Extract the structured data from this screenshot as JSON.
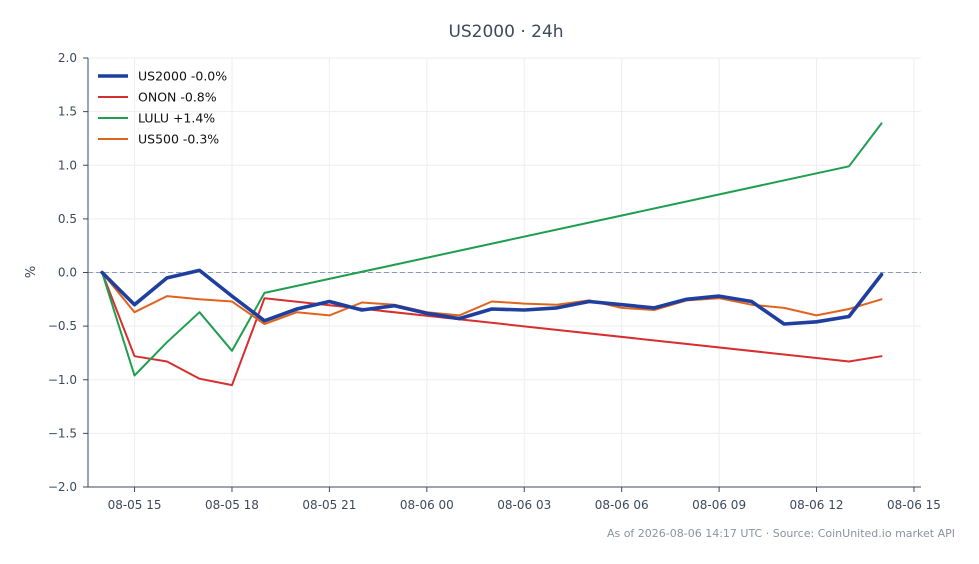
{
  "chart_data": {
    "type": "line",
    "title": "US2000 · 24h",
    "xlabel": "",
    "ylabel": "%",
    "ylim": [
      -2.0,
      2.0
    ],
    "xlim": [
      "2026-08-05 13:34",
      "2026-08-06 15:13"
    ],
    "x_ticks": [
      "2026-08-05 15:00",
      "2026-08-05 18:00",
      "2026-08-05 21:00",
      "2026-08-06 00:00",
      "2026-08-06 03:00",
      "2026-08-06 06:00",
      "2026-08-06 09:00",
      "2026-08-06 12:00",
      "2026-08-06 15:00"
    ],
    "x_tick_labels": [
      "08-05 15",
      "08-05 18",
      "08-05 21",
      "08-06 00",
      "08-06 03",
      "08-06 06",
      "08-06 09",
      "08-06 12",
      "08-06 15"
    ],
    "y_ticks": [
      2.0,
      1.5,
      1.0,
      0.5,
      0.0,
      -0.5,
      -1.0,
      -1.5,
      -2.0
    ],
    "y_tick_labels": [
      "2.0",
      "1.5",
      "1.0",
      "0.5",
      "0.0",
      "−0.5",
      "−1.0",
      "−1.5",
      "−2.0"
    ],
    "grid": true,
    "reference_line": 0.0,
    "legend_position": "top-left",
    "series": [
      {
        "name": "US2000 -0.0%",
        "color": "#1f3f9f",
        "emphasis": true,
        "x": [
          "2026-08-05 14:00",
          "2026-08-05 15:00",
          "2026-08-05 16:00",
          "2026-08-05 17:00",
          "2026-08-05 18:00",
          "2026-08-05 19:00",
          "2026-08-05 20:00",
          "2026-08-05 21:00",
          "2026-08-05 22:00",
          "2026-08-05 23:00",
          "2026-08-06 00:00",
          "2026-08-06 01:00",
          "2026-08-06 02:00",
          "2026-08-06 03:00",
          "2026-08-06 04:00",
          "2026-08-06 05:00",
          "2026-08-06 06:00",
          "2026-08-06 07:00",
          "2026-08-06 08:00",
          "2026-08-06 09:00",
          "2026-08-06 10:00",
          "2026-08-06 11:00",
          "2026-08-06 12:00",
          "2026-08-06 13:00",
          "2026-08-06 14:00"
        ],
        "values": [
          0.0,
          -0.3,
          -0.05,
          0.02,
          -0.22,
          -0.45,
          -0.34,
          -0.27,
          -0.35,
          -0.31,
          -0.38,
          -0.43,
          -0.34,
          -0.35,
          -0.33,
          -0.27,
          -0.3,
          -0.33,
          -0.25,
          -0.22,
          -0.27,
          -0.48,
          -0.46,
          -0.41,
          -0.02
        ]
      },
      {
        "name": "ONON -0.8%",
        "color": "#d62f2f",
        "emphasis": false,
        "x": [
          "2026-08-05 14:00",
          "2026-08-05 15:00",
          "2026-08-05 16:00",
          "2026-08-05 17:00",
          "2026-08-05 18:00",
          "2026-08-05 19:00",
          "2026-08-06 13:00",
          "2026-08-06 14:00"
        ],
        "values": [
          0.0,
          -0.78,
          -0.83,
          -0.99,
          -1.05,
          -0.24,
          -0.83,
          -0.78
        ]
      },
      {
        "name": "LULU +1.4%",
        "color": "#1f9e4f",
        "emphasis": false,
        "x": [
          "2026-08-05 14:00",
          "2026-08-05 15:00",
          "2026-08-05 16:00",
          "2026-08-05 17:00",
          "2026-08-05 18:00",
          "2026-08-05 19:00",
          "2026-08-06 13:00",
          "2026-08-06 14:00"
        ],
        "values": [
          0.0,
          -0.96,
          -0.65,
          -0.37,
          -0.73,
          -0.19,
          0.99,
          1.39
        ]
      },
      {
        "name": "US500 -0.3%",
        "color": "#e0631d",
        "emphasis": false,
        "x": [
          "2026-08-05 14:00",
          "2026-08-05 15:00",
          "2026-08-05 16:00",
          "2026-08-05 17:00",
          "2026-08-05 18:00",
          "2026-08-05 19:00",
          "2026-08-05 20:00",
          "2026-08-05 21:00",
          "2026-08-05 22:00",
          "2026-08-05 23:00",
          "2026-08-06 00:00",
          "2026-08-06 01:00",
          "2026-08-06 02:00",
          "2026-08-06 03:00",
          "2026-08-06 04:00",
          "2026-08-06 05:00",
          "2026-08-06 06:00",
          "2026-08-06 07:00",
          "2026-08-06 08:00",
          "2026-08-06 09:00",
          "2026-08-06 10:00",
          "2026-08-06 11:00",
          "2026-08-06 12:00",
          "2026-08-06 13:00",
          "2026-08-06 14:00"
        ],
        "values": [
          0.0,
          -0.37,
          -0.22,
          -0.25,
          -0.27,
          -0.48,
          -0.37,
          -0.4,
          -0.28,
          -0.3,
          -0.37,
          -0.4,
          -0.27,
          -0.29,
          -0.3,
          -0.26,
          -0.33,
          -0.35,
          -0.26,
          -0.24,
          -0.3,
          -0.33,
          -0.4,
          -0.34,
          -0.25
        ]
      }
    ]
  },
  "footer": "As of 2026-08-06 14:17 UTC · Source: CoinUnited.io market API"
}
